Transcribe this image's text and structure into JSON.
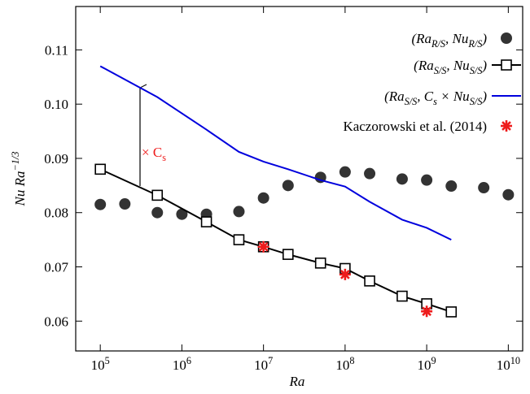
{
  "chart_data": {
    "type": "scatter-line",
    "x_label": "Ra",
    "y_label": "Nu Ra^{−1/3}",
    "xscale": "log",
    "xlim": [
      50000,
      15000000000
    ],
    "ylim": [
      0.0545,
      0.118
    ],
    "xticks": [
      {
        "value": 100000,
        "label": "10^{5}"
      },
      {
        "value": 1000000,
        "label": "10^{6}"
      },
      {
        "value": 10000000,
        "label": "10^{7}"
      },
      {
        "value": 100000000,
        "label": "10^{8}"
      },
      {
        "value": 1000000000,
        "label": "10^{9}"
      },
      {
        "value": 10000000000,
        "label": "10^{10}"
      }
    ],
    "yticks": [
      0.06,
      0.07,
      0.08,
      0.09,
      {
        "value": 0.1,
        "label": "0.10"
      },
      0.11
    ],
    "annotation": "× C_{s}",
    "series": [
      {
        "name": "(Ra_{R/S}, Nu_{R/S})",
        "color": "#333333",
        "marker": "circle",
        "line": false,
        "x": [
          100000,
          200000,
          500000,
          1000000,
          2000000,
          5000000,
          10000000,
          20000000,
          50000000,
          100000000,
          200000000,
          500000000,
          1000000000,
          2000000000,
          5000000000,
          10000000000
        ],
        "values": [
          0.0815,
          0.0816,
          0.08,
          0.0797,
          0.0797,
          0.0802,
          0.0827,
          0.085,
          0.0865,
          0.0875,
          0.0872,
          0.0862,
          0.086,
          0.0849,
          0.0846,
          0.0833
        ]
      },
      {
        "name": "(Ra_{S/S}, Nu_{S/S})",
        "color": "#000000",
        "marker": "square",
        "line": true,
        "x": [
          100000,
          500000,
          2000000,
          5000000,
          10000000,
          20000000,
          50000000,
          100000000,
          200000000,
          500000000,
          1000000000,
          2000000000
        ],
        "values": [
          0.088,
          0.0832,
          0.0783,
          0.075,
          0.0737,
          0.0723,
          0.0707,
          0.0697,
          0.0674,
          0.0646,
          0.0632,
          0.0617
        ]
      },
      {
        "name": "(Ra_{S/S}, C_{s} × Nu_{S/S})",
        "color": "#0000dd",
        "marker": "none",
        "line": true,
        "x": [
          100000,
          500000,
          2000000,
          5000000,
          10000000,
          20000000,
          50000000,
          100000000,
          200000000,
          500000000,
          1000000000,
          2000000000
        ],
        "values": [
          0.107,
          0.1013,
          0.0953,
          0.0912,
          0.0894,
          0.088,
          0.086,
          0.0848,
          0.082,
          0.0787,
          0.0772,
          0.075
        ]
      },
      {
        "name": "Kaczorowski et al. (2014)",
        "color": "#ee1c1c",
        "marker": "star",
        "line": false,
        "x": [
          10000000,
          100000000,
          1000000000
        ],
        "values": [
          0.0737,
          0.0686,
          0.0618
        ]
      }
    ]
  }
}
